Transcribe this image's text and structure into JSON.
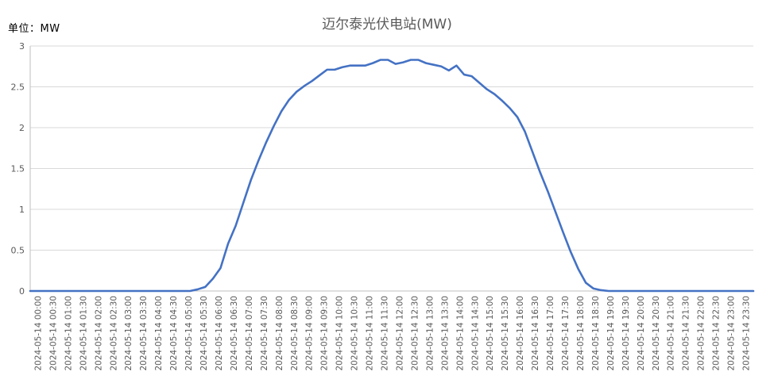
{
  "unit_label": "单位：MW",
  "chart_data": {
    "type": "line",
    "title": "迈尔泰光伏电站(MW)",
    "xlabel": "",
    "ylabel": "",
    "ylim": [
      0,
      3
    ],
    "yticks": [
      "0",
      "0.5",
      "1",
      "1.5",
      "2",
      "2.5",
      "3"
    ],
    "grid": true,
    "legend": "none",
    "line_color": "#4472C4",
    "gridline_color": "#d9d9d9",
    "x_tick_labels": [
      "2024-05-14 00:00",
      "2024-05-14 00:30",
      "2024-05-14 01:00",
      "2024-05-14 01:30",
      "2024-05-14 02:00",
      "2024-05-14 02:30",
      "2024-05-14 03:00",
      "2024-05-14 03:30",
      "2024-05-14 04:00",
      "2024-05-14 04:30",
      "2024-05-14 05:00",
      "2024-05-14 05:30",
      "2024-05-14 06:00",
      "2024-05-14 06:30",
      "2024-05-14 07:00",
      "2024-05-14 07:30",
      "2024-05-14 08:00",
      "2024-05-14 08:30",
      "2024-05-14 09:00",
      "2024-05-14 09:30",
      "2024-05-14 10:00",
      "2024-05-14 10:30",
      "2024-05-14 11:00",
      "2024-05-14 11:30",
      "2024-05-14 12:00",
      "2024-05-14 12:30",
      "2024-05-14 13:00",
      "2024-05-14 13:30",
      "2024-05-14 14:00",
      "2024-05-14 14:30",
      "2024-05-14 15:00",
      "2024-05-14 15:30",
      "2024-05-14 16:00",
      "2024-05-14 16:30",
      "2024-05-14 17:00",
      "2024-05-14 17:30",
      "2024-05-14 18:00",
      "2024-05-14 18:30",
      "2024-05-14 19:00",
      "2024-05-14 19:30",
      "2024-05-14 20:00",
      "2024-05-14 20:30",
      "2024-05-14 21:00",
      "2024-05-14 21:30",
      "2024-05-14 22:00",
      "2024-05-14 22:30",
      "2024-05-14 23:00",
      "2024-05-14 23:30"
    ],
    "series": [
      {
        "values": [
          0,
          0,
          0,
          0,
          0,
          0,
          0,
          0,
          0,
          0,
          0,
          0,
          0,
          0,
          0,
          0,
          0,
          0,
          0,
          0,
          0,
          0,
          0.02,
          0.05,
          0.15,
          0.28,
          0.58,
          0.8,
          1.08,
          1.36,
          1.6,
          1.82,
          2.02,
          2.2,
          2.34,
          2.44,
          2.51,
          2.57,
          2.64,
          2.71,
          2.71,
          2.74,
          2.76,
          2.76,
          2.76,
          2.79,
          2.83,
          2.83,
          2.78,
          2.8,
          2.83,
          2.83,
          2.79,
          2.77,
          2.75,
          2.7,
          2.76,
          2.65,
          2.63,
          2.55,
          2.47,
          2.41,
          2.33,
          2.24,
          2.13,
          1.95,
          1.7,
          1.45,
          1.22,
          0.97,
          0.72,
          0.48,
          0.27,
          0.1,
          0.03,
          0.01,
          0,
          0,
          0,
          0,
          0,
          0,
          0,
          0,
          0,
          0,
          0,
          0,
          0,
          0,
          0,
          0,
          0,
          0,
          0,
          0
        ]
      }
    ]
  }
}
